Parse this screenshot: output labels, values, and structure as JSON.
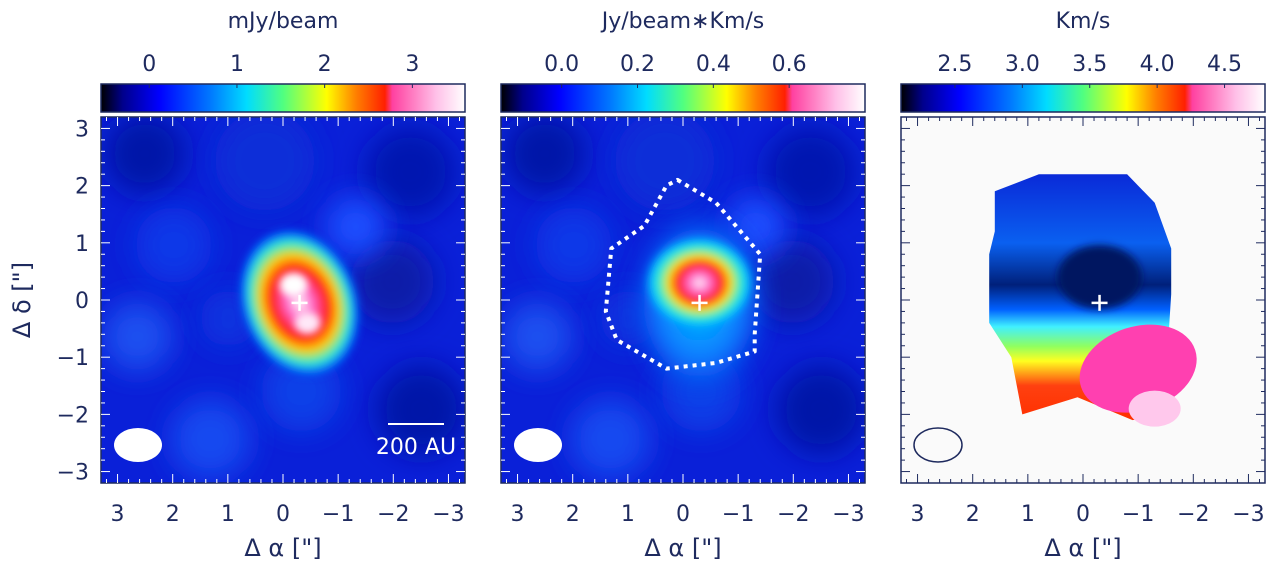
{
  "chart_data": [
    {
      "type": "heatmap",
      "colorbar_title": "mJy/beam",
      "colorbar_ticks": [
        "0",
        "1",
        "2",
        "3"
      ],
      "colorbar_tick_values": [
        0,
        1,
        2,
        3
      ],
      "colorbar_range": [
        -0.55,
        3.6
      ],
      "map_level": "low",
      "ylabel": "Δ δ [\"]",
      "xlabel": "Δ α [\"]",
      "xlim": [
        3.3,
        -3.3
      ],
      "ylim": [
        -3.2,
        3.2
      ],
      "xticks": [
        "3",
        "2",
        "1",
        "0",
        "−1",
        "−2",
        "−3"
      ],
      "xtick_values": [
        3,
        2,
        1,
        0,
        -1,
        -2,
        -3
      ],
      "yticks": [
        "3",
        "2",
        "1",
        "0",
        "−1",
        "−2",
        "−3"
      ],
      "ytick_values": [
        3,
        2,
        1,
        0,
        -1,
        -2,
        -3
      ],
      "scale_bar_label": "200  AU",
      "marker_position": [
        -0.3,
        -0.05
      ],
      "beam_style": "filled"
    },
    {
      "type": "heatmap",
      "colorbar_title": "Jy/beam∗Km/s",
      "colorbar_ticks": [
        "0.0",
        "0.2",
        "0.4",
        "0.6"
      ],
      "colorbar_tick_values": [
        0.0,
        0.2,
        0.4,
        0.6
      ],
      "colorbar_range": [
        -0.16,
        0.8
      ],
      "map_level": "low",
      "xlabel": "Δ α [\"]",
      "xlim": [
        3.3,
        -3.3
      ],
      "ylim": [
        -3.2,
        3.2
      ],
      "xticks": [
        "3",
        "2",
        "1",
        "0",
        "−1",
        "−2",
        "−3"
      ],
      "xtick_values": [
        3,
        2,
        1,
        0,
        -1,
        -2,
        -3
      ],
      "contour_style": "dotted white",
      "marker_position": [
        -0.3,
        -0.05
      ],
      "beam_style": "filled"
    },
    {
      "type": "heatmap",
      "colorbar_title": "Km/s",
      "colorbar_ticks": [
        "2.5",
        "3.0",
        "3.5",
        "4.0",
        "4.5"
      ],
      "colorbar_tick_values": [
        2.5,
        3.0,
        3.5,
        4.0,
        4.5
      ],
      "colorbar_range": [
        2.1,
        4.8
      ],
      "map_level": "background",
      "xlabel": "Δ α [\"]",
      "xlim": [
        3.3,
        -3.3
      ],
      "ylim": [
        -3.2,
        3.2
      ],
      "xticks": [
        "3",
        "2",
        "1",
        "0",
        "−1",
        "−2",
        "−3"
      ],
      "xtick_values": [
        3,
        2,
        1,
        0,
        -1,
        -2,
        -3
      ],
      "marker_position": [
        -0.3,
        -0.05
      ],
      "beam_style": "outline"
    }
  ],
  "colors": {
    "axis": "#1e2a5e",
    "colormap": [
      "#000000",
      "#00008c",
      "#0000ff",
      "#0078ff",
      "#00dcff",
      "#50ff80",
      "#ffff00",
      "#ff8000",
      "#ff2000",
      "#ff40a0",
      "#ffc0e8",
      "#ffffff"
    ],
    "map_background_level": "#0a20d8",
    "velocity_background": "#fafafa",
    "marker": "#ffffff"
  }
}
